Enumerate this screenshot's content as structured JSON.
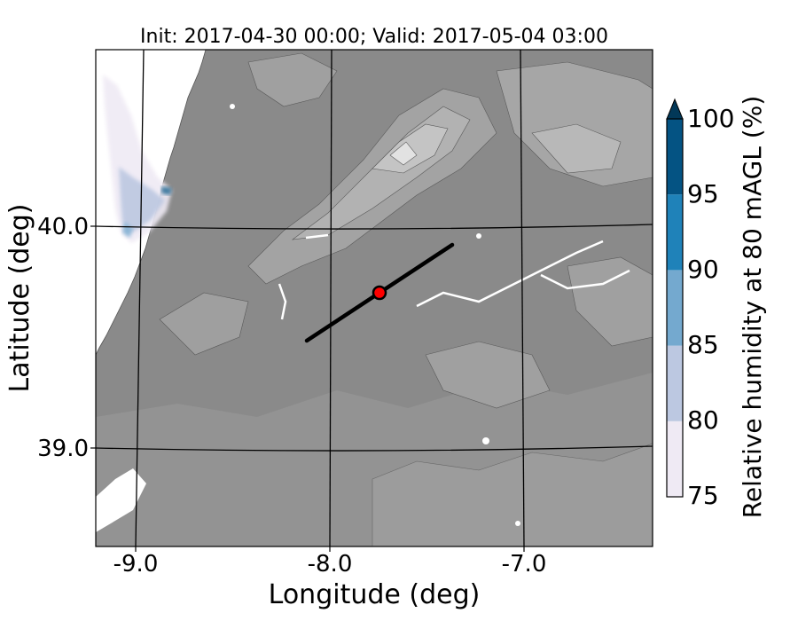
{
  "title": "Init: 2017-04-30 00:00; Valid: 2017-05-04 03:00",
  "xlabel": "Longitude (deg)",
  "ylabel": "Latitude (deg)",
  "x_ticks": [
    "-9.0",
    "-8.0",
    "-7.0"
  ],
  "y_ticks": [
    "40.0",
    "39.0"
  ],
  "colorbar": {
    "label": "Relative humidity at 80 mAGL (%)",
    "ticks": [
      "75",
      "80",
      "85",
      "90",
      "95",
      "100"
    ],
    "colors": [
      "#efeaf4",
      "#bcc8e1",
      "#74a9cf",
      "#1f82b9",
      "#045383",
      "#023858"
    ],
    "extend": "max"
  },
  "chart_data": {
    "type": "heatmap",
    "title": "Init: 2017-04-30 00:00; Valid: 2017-05-04 03:00",
    "xlabel": "Longitude (deg)",
    "ylabel": "Latitude (deg)",
    "xlim": [
      -9.25,
      -6.4
    ],
    "ylim": [
      38.55,
      40.8
    ],
    "variable": "Relative humidity at 80 mAGL (%)",
    "levels": [
      75,
      80,
      85,
      90,
      95,
      100
    ],
    "terrain_background": "grayscale",
    "cross_section_line": {
      "start": [
        -8.1,
        39.5
      ],
      "end": [
        -7.35,
        39.93
      ]
    },
    "marker": {
      "lon": -7.75,
      "lat": 39.7,
      "color": "#ff0000"
    },
    "gridlines": true
  }
}
